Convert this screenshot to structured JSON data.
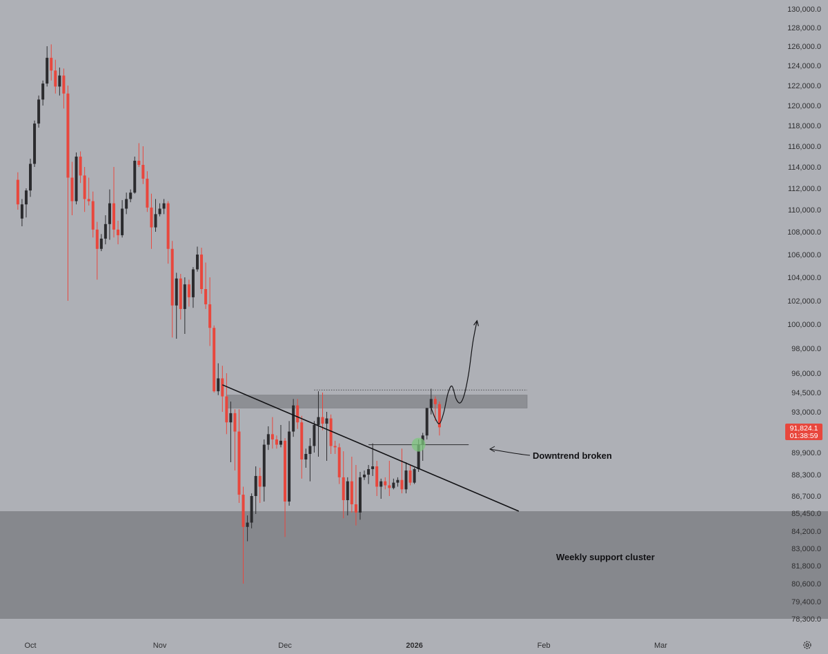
{
  "colors": {
    "background": "#aeb0b6",
    "up_candle": "#2b2b2e",
    "down_candle": "#e8473d",
    "support_zone": "#86888d",
    "resistance_zone": "#8d8f94",
    "price_badge": "#e8473d",
    "breakout_marker": "#7ec77e",
    "axis_text": "#2e2e30"
  },
  "annotations": {
    "downtrend_label": "Downtrend broken",
    "support_label": "Weekly support cluster"
  },
  "price_badge": {
    "price": "91,824.1",
    "countdown": "01:38:59"
  },
  "settings_icon": "gear-icon",
  "chart_data": {
    "type": "candlestick",
    "title": "",
    "xlabel": "",
    "ylabel": "",
    "y_tick_labels": [
      {
        "v": 130000,
        "label": "130,000.0"
      },
      {
        "v": 128000,
        "label": "128,000.0"
      },
      {
        "v": 126000,
        "label": "126,000.0"
      },
      {
        "v": 124000,
        "label": "124,000.0"
      },
      {
        "v": 122000,
        "label": "122,000.0"
      },
      {
        "v": 120000,
        "label": "120,000.0"
      },
      {
        "v": 118000,
        "label": "118,000.0"
      },
      {
        "v": 116000,
        "label": "116,000.0"
      },
      {
        "v": 114000,
        "label": "114,000.0"
      },
      {
        "v": 112000,
        "label": "112,000.0"
      },
      {
        "v": 110000,
        "label": "110,000.0"
      },
      {
        "v": 108000,
        "label": "108,000.0"
      },
      {
        "v": 106000,
        "label": "106,000.0"
      },
      {
        "v": 104000,
        "label": "104,000.0"
      },
      {
        "v": 102000,
        "label": "102,000.0"
      },
      {
        "v": 100000,
        "label": "100,000.0"
      },
      {
        "v": 98000,
        "label": "98,000.0"
      },
      {
        "v": 96000,
        "label": "96,000.0"
      },
      {
        "v": 94500,
        "label": "94,500.0"
      },
      {
        "v": 93000,
        "label": "93,000.0"
      },
      {
        "v": 89900,
        "label": "89,900.0"
      },
      {
        "v": 88300,
        "label": "88,300.0"
      },
      {
        "v": 86700,
        "label": "86,700.0"
      },
      {
        "v": 85450,
        "label": "85,450.0"
      },
      {
        "v": 84200,
        "label": "84,200.0"
      },
      {
        "v": 83000,
        "label": "83,000.0"
      },
      {
        "v": 81800,
        "label": "81,800.0"
      },
      {
        "v": 80600,
        "label": "80,600.0"
      },
      {
        "v": 79400,
        "label": "79,400.0"
      },
      {
        "v": 78300,
        "label": "78,300.0"
      }
    ],
    "x_tick_labels": [
      {
        "label": "Oct",
        "date": "2025-10-01",
        "bold": false
      },
      {
        "label": "Nov",
        "date": "2025-11-01",
        "bold": false
      },
      {
        "label": "Dec",
        "date": "2025-12-01",
        "bold": false
      },
      {
        "label": "2026",
        "date": "2026-01-01",
        "bold": true
      },
      {
        "label": "Feb",
        "date": "2026-02-01",
        "bold": false
      },
      {
        "label": "Mar",
        "date": "2026-03-01",
        "bold": false
      }
    ],
    "ohlc": [
      {
        "date": "2025-09-28",
        "o": 112800,
        "h": 113500,
        "l": 110000,
        "c": 110500
      },
      {
        "date": "2025-09-29",
        "o": 109200,
        "h": 111000,
        "l": 108500,
        "c": 110500
      },
      {
        "date": "2025-09-30",
        "o": 110500,
        "h": 112000,
        "l": 109300,
        "c": 111800
      },
      {
        "date": "2025-10-01",
        "o": 111800,
        "h": 114800,
        "l": 111200,
        "c": 114300
      },
      {
        "date": "2025-10-02",
        "o": 114300,
        "h": 118500,
        "l": 114000,
        "c": 118200
      },
      {
        "date": "2025-10-03",
        "o": 118200,
        "h": 121000,
        "l": 117800,
        "c": 120600
      },
      {
        "date": "2025-10-04",
        "o": 120600,
        "h": 122500,
        "l": 120000,
        "c": 122200
      },
      {
        "date": "2025-10-05",
        "o": 122200,
        "h": 126000,
        "l": 121900,
        "c": 124800
      },
      {
        "date": "2025-10-06",
        "o": 124800,
        "h": 126200,
        "l": 122500,
        "c": 123500
      },
      {
        "date": "2025-10-07",
        "o": 123500,
        "h": 124600,
        "l": 121200,
        "c": 121900
      },
      {
        "date": "2025-10-08",
        "o": 121900,
        "h": 123800,
        "l": 121000,
        "c": 123000
      },
      {
        "date": "2025-10-09",
        "o": 123000,
        "h": 123700,
        "l": 119700,
        "c": 121200
      },
      {
        "date": "2025-10-10",
        "o": 121200,
        "h": 122000,
        "l": 102000,
        "c": 113000
      },
      {
        "date": "2025-10-11",
        "o": 113000,
        "h": 114500,
        "l": 109500,
        "c": 110800
      },
      {
        "date": "2025-10-12",
        "o": 110800,
        "h": 115400,
        "l": 110500,
        "c": 115000
      },
      {
        "date": "2025-10-13",
        "o": 115000,
        "h": 115500,
        "l": 112500,
        "c": 113200
      },
      {
        "date": "2025-10-14",
        "o": 113200,
        "h": 114000,
        "l": 109800,
        "c": 111000
      },
      {
        "date": "2025-10-15",
        "o": 111000,
        "h": 113000,
        "l": 110400,
        "c": 110800
      },
      {
        "date": "2025-10-16",
        "o": 110800,
        "h": 111700,
        "l": 107500,
        "c": 108200
      },
      {
        "date": "2025-10-17",
        "o": 108200,
        "h": 108900,
        "l": 103800,
        "c": 106500
      },
      {
        "date": "2025-10-18",
        "o": 106500,
        "h": 107800,
        "l": 106300,
        "c": 107400
      },
      {
        "date": "2025-10-19",
        "o": 107400,
        "h": 109500,
        "l": 106900,
        "c": 108700
      },
      {
        "date": "2025-10-20",
        "o": 108700,
        "h": 111900,
        "l": 107300,
        "c": 110600
      },
      {
        "date": "2025-10-21",
        "o": 110600,
        "h": 114000,
        "l": 107500,
        "c": 108200
      },
      {
        "date": "2025-10-22",
        "o": 108200,
        "h": 109000,
        "l": 106900,
        "c": 107700
      },
      {
        "date": "2025-10-23",
        "o": 107700,
        "h": 110900,
        "l": 107500,
        "c": 110100
      },
      {
        "date": "2025-10-24",
        "o": 110100,
        "h": 111600,
        "l": 109600,
        "c": 111000
      },
      {
        "date": "2025-10-25",
        "o": 111000,
        "h": 111900,
        "l": 110700,
        "c": 111600
      },
      {
        "date": "2025-10-26",
        "o": 111600,
        "h": 115000,
        "l": 111500,
        "c": 114600
      },
      {
        "date": "2025-10-27",
        "o": 114600,
        "h": 116300,
        "l": 114000,
        "c": 114200
      },
      {
        "date": "2025-10-28",
        "o": 114200,
        "h": 116000,
        "l": 112400,
        "c": 112900
      },
      {
        "date": "2025-10-29",
        "o": 112900,
        "h": 113600,
        "l": 109800,
        "c": 110200
      },
      {
        "date": "2025-10-30",
        "o": 110200,
        "h": 111500,
        "l": 106500,
        "c": 108400
      },
      {
        "date": "2025-10-31",
        "o": 108400,
        "h": 111000,
        "l": 108000,
        "c": 109600
      },
      {
        "date": "2025-11-01",
        "o": 109600,
        "h": 110600,
        "l": 109400,
        "c": 110100
      },
      {
        "date": "2025-11-02",
        "o": 110100,
        "h": 111000,
        "l": 109600,
        "c": 110600
      },
      {
        "date": "2025-11-03",
        "o": 110600,
        "h": 110800,
        "l": 105200,
        "c": 106500
      },
      {
        "date": "2025-11-04",
        "o": 106500,
        "h": 107200,
        "l": 98900,
        "c": 101600
      },
      {
        "date": "2025-11-05",
        "o": 101600,
        "h": 104400,
        "l": 98800,
        "c": 103900
      },
      {
        "date": "2025-11-06",
        "o": 103900,
        "h": 104300,
        "l": 100400,
        "c": 101300
      },
      {
        "date": "2025-11-07",
        "o": 101300,
        "h": 104000,
        "l": 99200,
        "c": 103400
      },
      {
        "date": "2025-11-08",
        "o": 103400,
        "h": 103800,
        "l": 101500,
        "c": 102300
      },
      {
        "date": "2025-11-09",
        "o": 102300,
        "h": 104900,
        "l": 101400,
        "c": 104700
      },
      {
        "date": "2025-11-10",
        "o": 104700,
        "h": 106700,
        "l": 104500,
        "c": 106000
      },
      {
        "date": "2025-11-11",
        "o": 106000,
        "h": 106600,
        "l": 102600,
        "c": 103000
      },
      {
        "date": "2025-11-12",
        "o": 103000,
        "h": 105300,
        "l": 101300,
        "c": 101700
      },
      {
        "date": "2025-11-13",
        "o": 101700,
        "h": 104000,
        "l": 98200,
        "c": 99700
      },
      {
        "date": "2025-11-14",
        "o": 99700,
        "h": 99900,
        "l": 94500,
        "c": 94600
      },
      {
        "date": "2025-11-15",
        "o": 94600,
        "h": 96800,
        "l": 94300,
        "c": 95600
      },
      {
        "date": "2025-11-16",
        "o": 95600,
        "h": 96600,
        "l": 93000,
        "c": 94200
      },
      {
        "date": "2025-11-17",
        "o": 94200,
        "h": 96000,
        "l": 91300,
        "c": 92200
      },
      {
        "date": "2025-11-18",
        "o": 92200,
        "h": 93800,
        "l": 89200,
        "c": 92900
      },
      {
        "date": "2025-11-19",
        "o": 92900,
        "h": 93200,
        "l": 88600,
        "c": 91500
      },
      {
        "date": "2025-11-20",
        "o": 91500,
        "h": 93200,
        "l": 86200,
        "c": 86800
      },
      {
        "date": "2025-11-21",
        "o": 86800,
        "h": 87400,
        "l": 80600,
        "c": 84500
      },
      {
        "date": "2025-11-22",
        "o": 84500,
        "h": 85300,
        "l": 83500,
        "c": 84800
      },
      {
        "date": "2025-11-23",
        "o": 84800,
        "h": 86900,
        "l": 84400,
        "c": 86700
      },
      {
        "date": "2025-11-24",
        "o": 86700,
        "h": 88900,
        "l": 85400,
        "c": 88200
      },
      {
        "date": "2025-11-25",
        "o": 88200,
        "h": 88800,
        "l": 86200,
        "c": 87400
      },
      {
        "date": "2025-11-26",
        "o": 87400,
        "h": 90900,
        "l": 86300,
        "c": 90500
      },
      {
        "date": "2025-11-27",
        "o": 90500,
        "h": 91900,
        "l": 90100,
        "c": 91300
      },
      {
        "date": "2025-11-28",
        "o": 91300,
        "h": 92600,
        "l": 90200,
        "c": 90900
      },
      {
        "date": "2025-11-29",
        "o": 90900,
        "h": 91200,
        "l": 90200,
        "c": 90500
      },
      {
        "date": "2025-11-30",
        "o": 90500,
        "h": 92000,
        "l": 90300,
        "c": 90800
      },
      {
        "date": "2025-12-01",
        "o": 90800,
        "h": 91000,
        "l": 83800,
        "c": 86300
      },
      {
        "date": "2025-12-02",
        "o": 86300,
        "h": 92300,
        "l": 86000,
        "c": 91500
      },
      {
        "date": "2025-12-03",
        "o": 91500,
        "h": 94000,
        "l": 91100,
        "c": 93500
      },
      {
        "date": "2025-12-04",
        "o": 93500,
        "h": 94000,
        "l": 91700,
        "c": 92200
      },
      {
        "date": "2025-12-05",
        "o": 92200,
        "h": 92700,
        "l": 88000,
        "c": 89400
      },
      {
        "date": "2025-12-06",
        "o": 89400,
        "h": 90200,
        "l": 88800,
        "c": 89800
      },
      {
        "date": "2025-12-07",
        "o": 89800,
        "h": 91000,
        "l": 87800,
        "c": 90400
      },
      {
        "date": "2025-12-08",
        "o": 90400,
        "h": 92300,
        "l": 89900,
        "c": 92000
      },
      {
        "date": "2025-12-09",
        "o": 92000,
        "h": 94600,
        "l": 89600,
        "c": 92600
      },
      {
        "date": "2025-12-10",
        "o": 92600,
        "h": 94500,
        "l": 91600,
        "c": 92100
      },
      {
        "date": "2025-12-11",
        "o": 92100,
        "h": 93000,
        "l": 89300,
        "c": 92500
      },
      {
        "date": "2025-12-12",
        "o": 92500,
        "h": 92800,
        "l": 89800,
        "c": 90400
      },
      {
        "date": "2025-12-13",
        "o": 90400,
        "h": 90800,
        "l": 89800,
        "c": 90300
      },
      {
        "date": "2025-12-14",
        "o": 90300,
        "h": 90600,
        "l": 87600,
        "c": 88100
      },
      {
        "date": "2025-12-15",
        "o": 88100,
        "h": 90000,
        "l": 85100,
        "c": 86400
      },
      {
        "date": "2025-12-16",
        "o": 86400,
        "h": 88100,
        "l": 85300,
        "c": 87800
      },
      {
        "date": "2025-12-17",
        "o": 87800,
        "h": 89600,
        "l": 85500,
        "c": 86100
      },
      {
        "date": "2025-12-18",
        "o": 86100,
        "h": 89000,
        "l": 84600,
        "c": 85500
      },
      {
        "date": "2025-12-19",
        "o": 85500,
        "h": 88500,
        "l": 85000,
        "c": 88100
      },
      {
        "date": "2025-12-20",
        "o": 88100,
        "h": 88600,
        "l": 87900,
        "c": 88300
      },
      {
        "date": "2025-12-21",
        "o": 88300,
        "h": 89000,
        "l": 87600,
        "c": 88700
      },
      {
        "date": "2025-12-22",
        "o": 88700,
        "h": 90600,
        "l": 88200,
        "c": 88900
      },
      {
        "date": "2025-12-23",
        "o": 88900,
        "h": 89300,
        "l": 86700,
        "c": 87400
      },
      {
        "date": "2025-12-24",
        "o": 87400,
        "h": 88000,
        "l": 86500,
        "c": 87800
      },
      {
        "date": "2025-12-25",
        "o": 87800,
        "h": 88100,
        "l": 87200,
        "c": 87500
      },
      {
        "date": "2025-12-26",
        "o": 87500,
        "h": 89300,
        "l": 86700,
        "c": 87300
      },
      {
        "date": "2025-12-27",
        "o": 87300,
        "h": 88000,
        "l": 87200,
        "c": 87700
      },
      {
        "date": "2025-12-28",
        "o": 87700,
        "h": 88100,
        "l": 87400,
        "c": 87900
      },
      {
        "date": "2025-12-29",
        "o": 87900,
        "h": 90200,
        "l": 86900,
        "c": 87200
      },
      {
        "date": "2025-12-30",
        "o": 87200,
        "h": 89200,
        "l": 86900,
        "c": 88600
      },
      {
        "date": "2025-12-31",
        "o": 88600,
        "h": 89000,
        "l": 87500,
        "c": 87700
      },
      {
        "date": "2026-01-01",
        "o": 87700,
        "h": 88800,
        "l": 87600,
        "c": 88700
      },
      {
        "date": "2026-01-02",
        "o": 88700,
        "h": 90900,
        "l": 88500,
        "c": 90500
      },
      {
        "date": "2026-01-03",
        "o": 90500,
        "h": 91400,
        "l": 89300,
        "c": 91200
      },
      {
        "date": "2026-01-04",
        "o": 91200,
        "h": 93300,
        "l": 90900,
        "c": 93300
      },
      {
        "date": "2026-01-05",
        "o": 93300,
        "h": 94800,
        "l": 92800,
        "c": 94000
      },
      {
        "date": "2026-01-06",
        "o": 94000,
        "h": 94200,
        "l": 92300,
        "c": 93600
      },
      {
        "date": "2026-01-07",
        "o": 93600,
        "h": 93800,
        "l": 91200,
        "c": 91824.1
      }
    ],
    "zones": [
      {
        "label": "Weekly support cluster",
        "y_low": 78300,
        "y_high": 85600,
        "x_start": "2025-09-28",
        "x_end": "2026-03-05"
      },
      {
        "label": "",
        "y_low": 93300,
        "y_high": 94300,
        "x_start": "2025-11-17",
        "x_end": "2026-01-28"
      }
    ],
    "trendline": {
      "x1": "2025-11-16",
      "y1": 95100,
      "x2": "2026-01-26",
      "y2": 85600
    },
    "level_lines": [
      {
        "y": 94700,
        "x_start": "2025-12-08",
        "x_end": "2026-01-28",
        "style": "dotted"
      },
      {
        "y": 90500,
        "x_start": "2025-12-21",
        "x_end": "2026-01-14",
        "style": "solid"
      }
    ],
    "projected_path": [
      {
        "date": "2026-01-05",
        "v": 93300
      },
      {
        "date": "2026-01-06",
        "v": 92500
      },
      {
        "date": "2026-01-07",
        "v": 92100
      },
      {
        "date": "2026-01-08",
        "v": 92900
      },
      {
        "date": "2026-01-09",
        "v": 94400
      },
      {
        "date": "2026-01-10",
        "v": 95000
      },
      {
        "date": "2026-01-11",
        "v": 94000
      },
      {
        "date": "2026-01-12",
        "v": 93700
      },
      {
        "date": "2026-01-13",
        "v": 94400
      },
      {
        "date": "2026-01-14",
        "v": 96000
      },
      {
        "date": "2026-01-15",
        "v": 98500
      },
      {
        "date": "2026-01-16",
        "v": 100300
      }
    ],
    "breakout_marker": {
      "date": "2026-01-02",
      "v": 90500
    },
    "current_price": 91824.1,
    "grid": false,
    "legend": "none"
  }
}
